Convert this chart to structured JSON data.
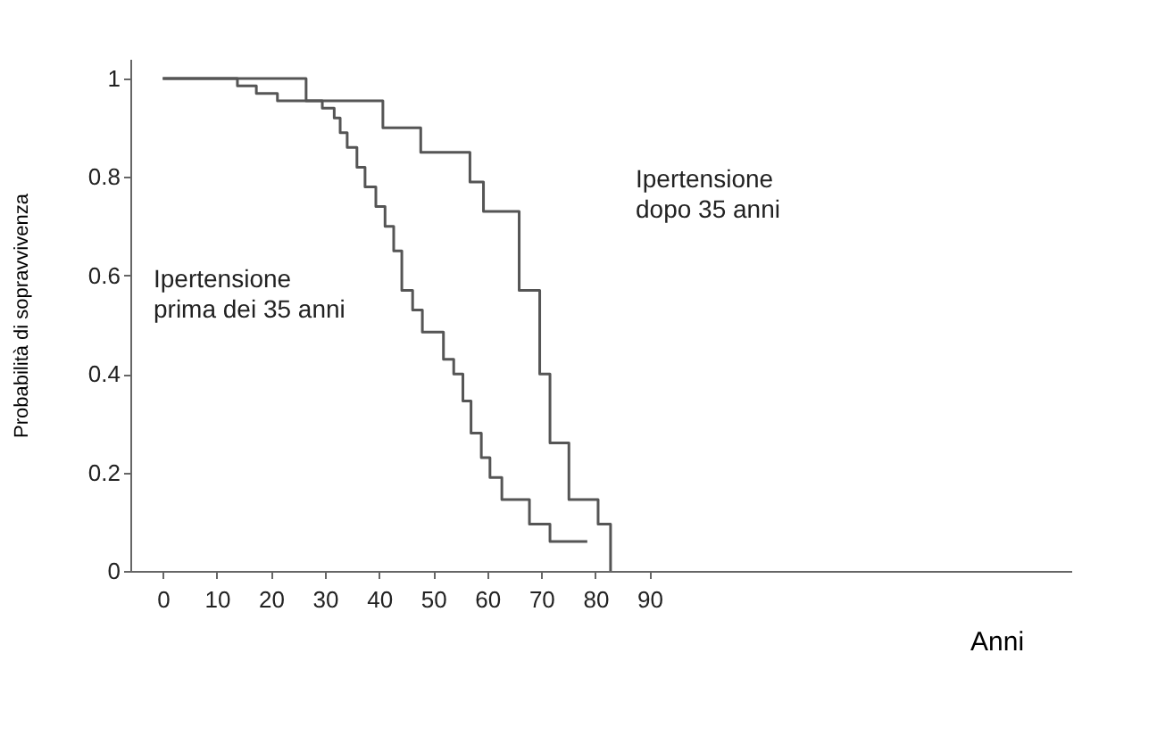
{
  "chart_data": {
    "type": "step",
    "xlabel": "Anni",
    "ylabel": "Probabilità di sopravvivenza",
    "xlim": [
      -6,
      168
    ],
    "xticks": [
      0,
      10,
      20,
      30,
      40,
      50,
      60,
      70,
      80,
      90
    ],
    "ylim": [
      0,
      1.04
    ],
    "yticks": [
      0,
      0.2,
      0.4,
      0.6,
      0.8,
      1
    ],
    "grid": false,
    "marker": "none",
    "line_style": "solid",
    "series": [
      {
        "color": "#555555",
        "x": [
          0,
          13.8,
          17.3,
          21.2,
          29.5,
          31.7,
          32.8,
          34.1,
          35.9,
          37.4,
          39.4,
          41.1,
          42.7,
          44.2,
          46.2,
          48.0,
          51.9,
          53.8,
          55.5,
          57.0,
          58.9,
          60.5,
          62.7,
          67.8,
          71.6,
          78.5
        ],
        "values": [
          1,
          0.985,
          0.97,
          0.955,
          0.94,
          0.92,
          0.89,
          0.86,
          0.82,
          0.78,
          0.74,
          0.7,
          0.65,
          0.57,
          0.53,
          0.485,
          0.43,
          0.4,
          0.345,
          0.28,
          0.23,
          0.19,
          0.145,
          0.095,
          0.06,
          0.06
        ]
      },
      {
        "color": "#555555",
        "x": [
          0,
          26.5,
          40.7,
          47.7,
          56.8,
          59.3,
          65.9,
          69.7,
          71.6,
          75.1,
          80.5,
          82.8
        ],
        "values": [
          1,
          0.955,
          0.9,
          0.85,
          0.79,
          0.73,
          0.57,
          0.4,
          0.26,
          0.145,
          0.095,
          0
        ]
      }
    ],
    "annotations": [
      "Ipertensione\nprima dei 35 anni",
      "Ipertensione\ndopo 35 anni"
    ]
  }
}
